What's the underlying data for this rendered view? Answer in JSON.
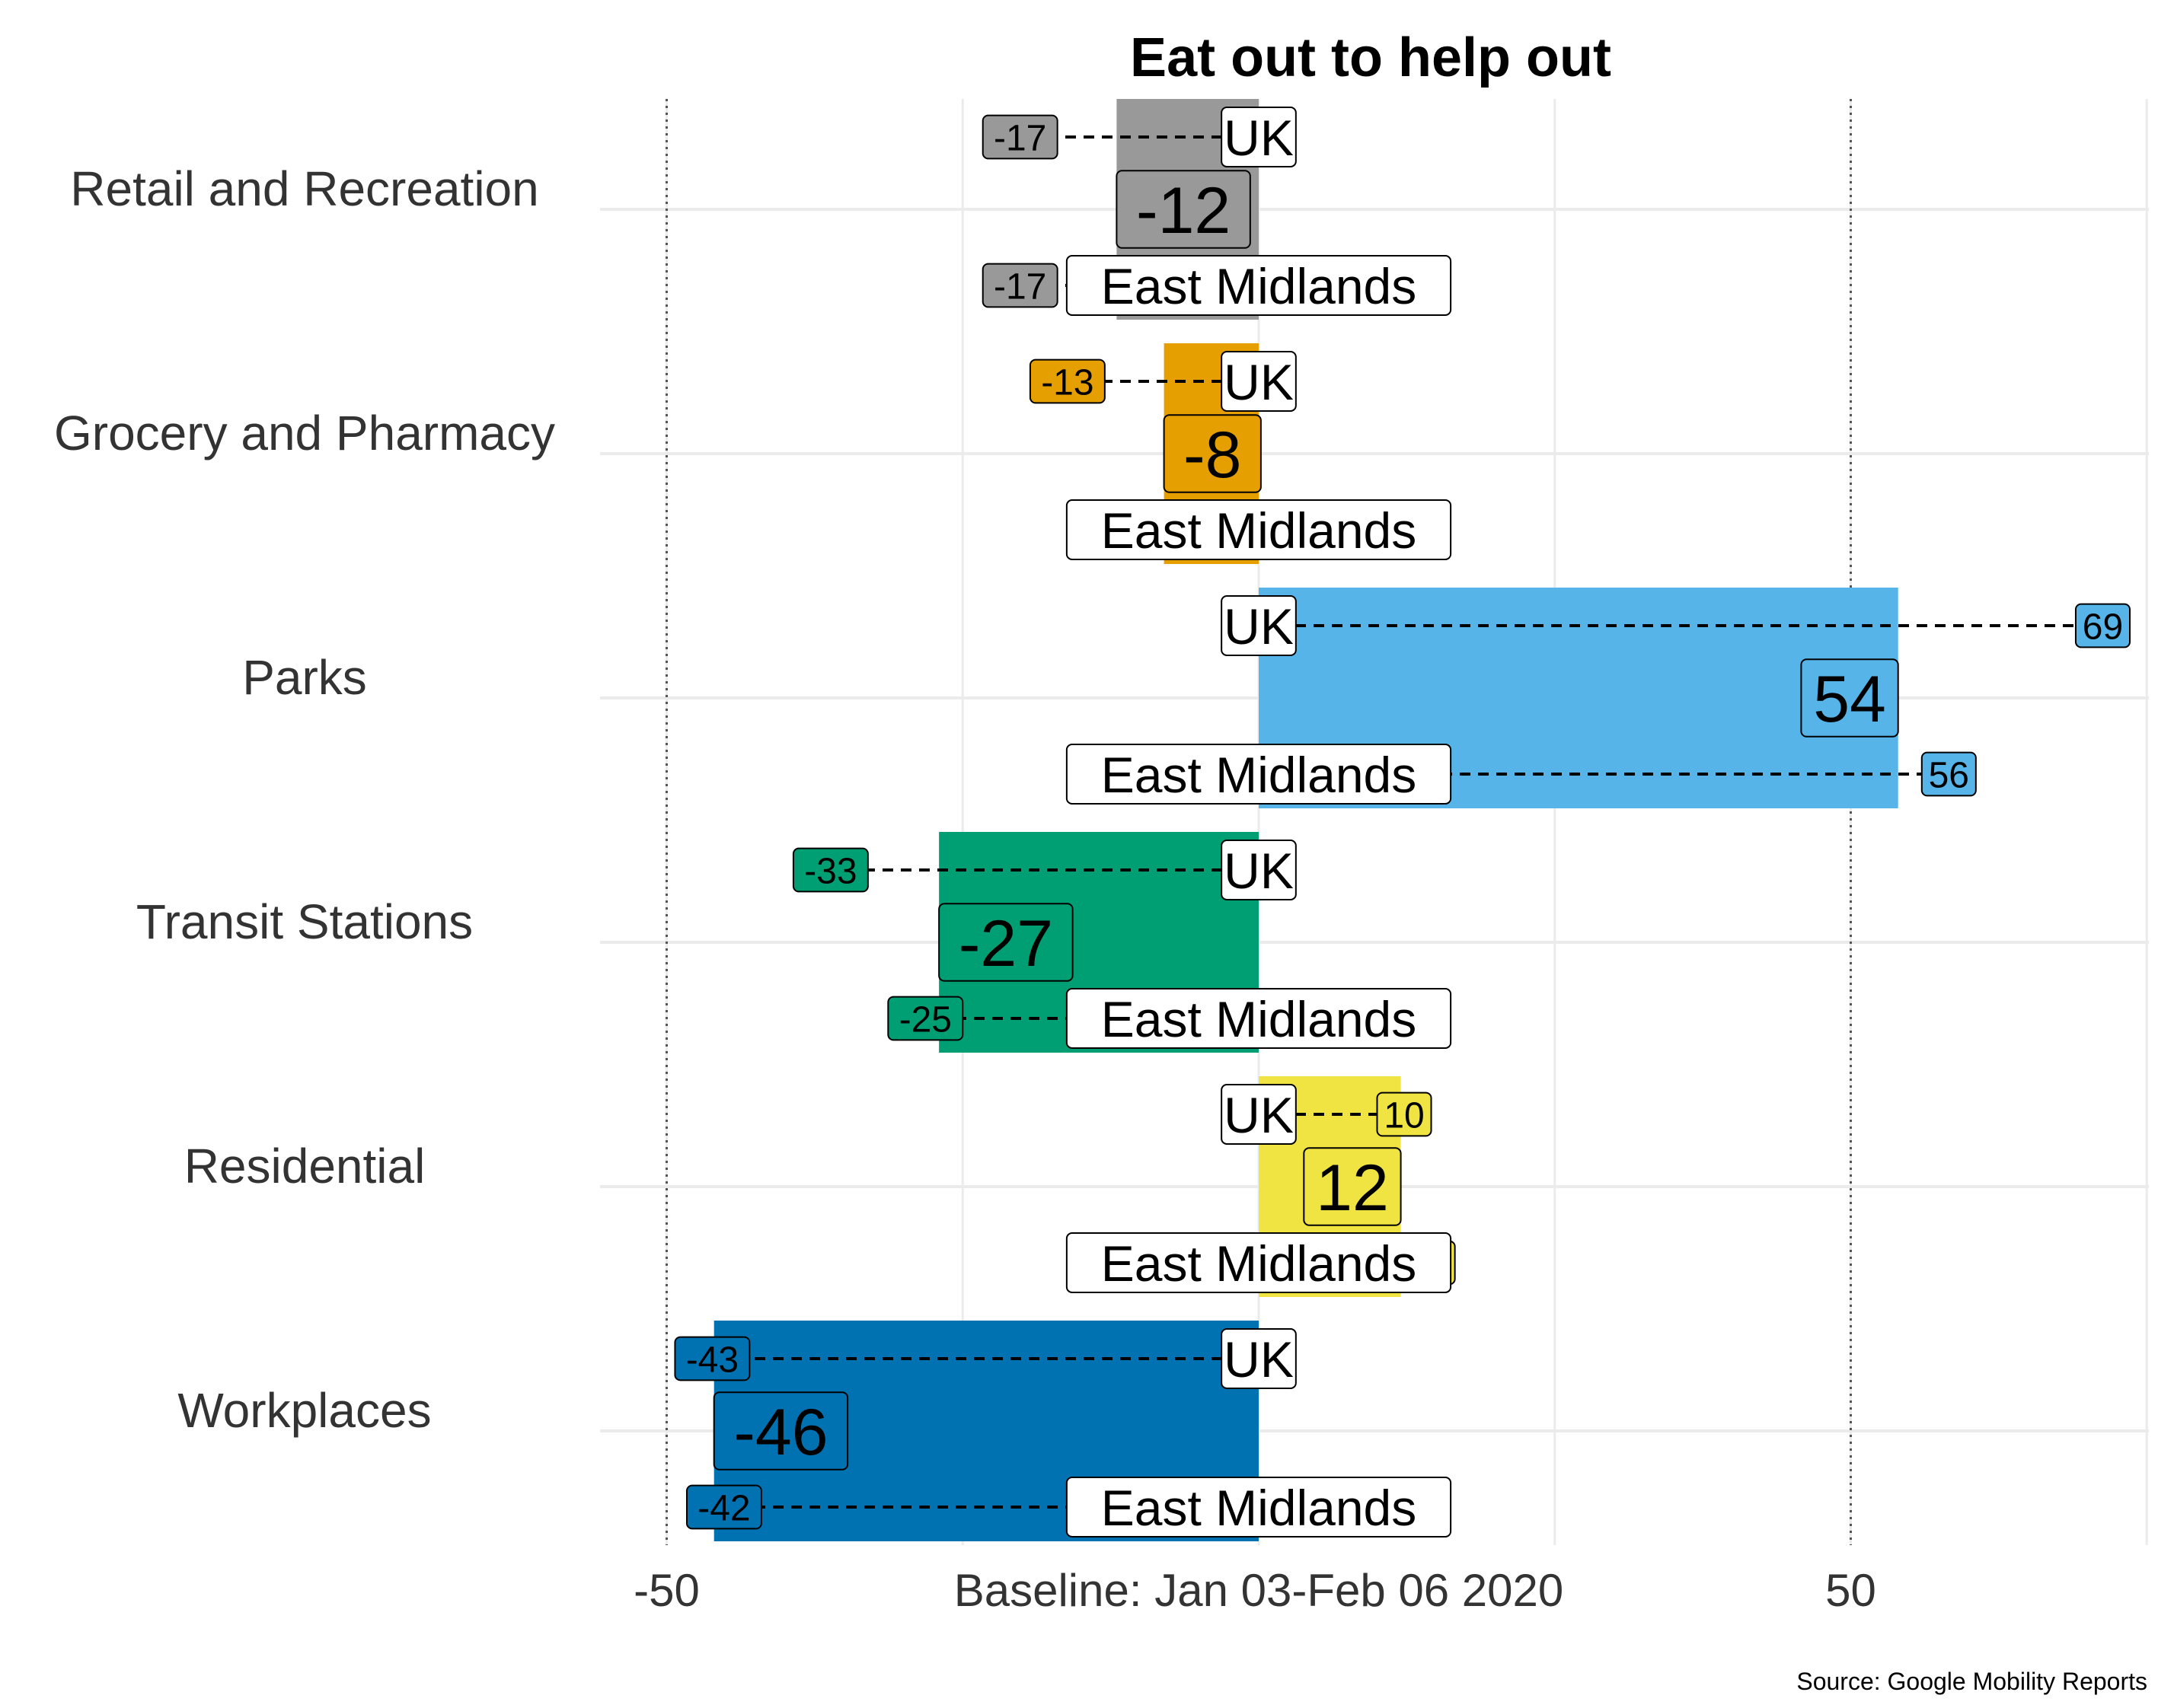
{
  "chart_data": {
    "type": "bar",
    "title": "Eat out to help out",
    "xlabel": "",
    "ylabel": "",
    "xlim": [
      -60,
      75
    ],
    "x_ticks": [
      {
        "value": -50,
        "label": "-50"
      },
      {
        "value": 0,
        "label": "Baseline: Jan 03-Feb 06 2020"
      },
      {
        "value": 50,
        "label": "50"
      }
    ],
    "reference_lines": [
      -50,
      50
    ],
    "grid": true,
    "uk_label": "UK",
    "region_label": "East Midlands",
    "categories": [
      {
        "name": "Retail and Recreation",
        "value": -12,
        "uk": -17,
        "region": -17,
        "color": "#999999"
      },
      {
        "name": "Grocery and Pharmacy",
        "value": -8,
        "uk": -13,
        "region": -8,
        "color": "#E69F00"
      },
      {
        "name": "Parks",
        "value": 54,
        "uk": 69,
        "region": 56,
        "color": "#56B4E9"
      },
      {
        "name": "Transit Stations",
        "value": -27,
        "uk": -33,
        "region": -25,
        "color": "#009E73"
      },
      {
        "name": "Residential",
        "value": 12,
        "uk": 10,
        "region": 12,
        "color": "#F0E442"
      },
      {
        "name": "Workplaces",
        "value": -46,
        "uk": -43,
        "region": -42,
        "color": "#0072B2"
      }
    ],
    "source": "Source: Google Mobility Reports"
  }
}
